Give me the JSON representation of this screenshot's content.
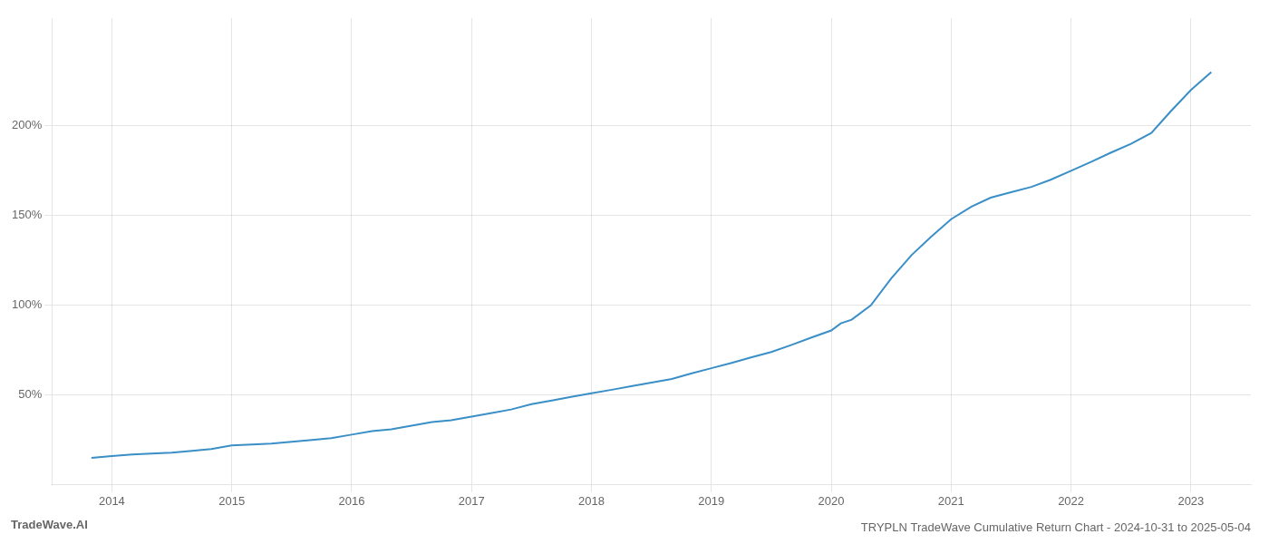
{
  "chart_data": {
    "type": "line",
    "title": "TRYPLN TradeWave Cumulative Return Chart - 2024-10-31 to 2025-05-04",
    "annotations": [
      "TradeWave.AI"
    ],
    "x": [
      2013.83,
      2014.0,
      2014.17,
      2014.33,
      2014.5,
      2014.67,
      2014.83,
      2015.0,
      2015.17,
      2015.33,
      2015.5,
      2015.67,
      2015.83,
      2016.0,
      2016.17,
      2016.33,
      2016.5,
      2016.67,
      2016.83,
      2017.0,
      2017.17,
      2017.33,
      2017.5,
      2017.67,
      2017.83,
      2018.0,
      2018.17,
      2018.33,
      2018.5,
      2018.67,
      2018.83,
      2019.0,
      2019.17,
      2019.33,
      2019.5,
      2019.67,
      2019.83,
      2020.0,
      2020.08,
      2020.17,
      2020.33,
      2020.5,
      2020.67,
      2020.83,
      2021.0,
      2021.17,
      2021.33,
      2021.5,
      2021.67,
      2021.83,
      2022.0,
      2022.17,
      2022.33,
      2022.5,
      2022.67,
      2022.83,
      2023.0,
      2023.17
    ],
    "values": [
      15,
      16,
      17,
      17.5,
      18,
      19,
      20,
      22,
      22.5,
      23,
      24,
      25,
      26,
      28,
      30,
      31,
      33,
      35,
      36,
      38,
      40,
      42,
      45,
      47,
      49,
      51,
      53,
      55,
      57,
      59,
      62,
      65,
      68,
      71,
      74,
      78,
      82,
      86,
      90,
      92,
      100,
      115,
      128,
      138,
      148,
      155,
      160,
      163,
      166,
      170,
      175,
      180,
      185,
      190,
      196,
      208,
      220,
      230
    ],
    "color": "#3a8fc7",
    "xlim": [
      2013.5,
      2023.5
    ],
    "xticks": [
      2014,
      2015,
      2016,
      2017,
      2018,
      2019,
      2020,
      2021,
      2022,
      2023
    ],
    "ylim": [
      0,
      260
    ],
    "yticks": [
      {
        "value": 50,
        "label": "50%"
      },
      {
        "value": 100,
        "label": "100%"
      },
      {
        "value": 150,
        "label": "150%"
      },
      {
        "value": 200,
        "label": "200%"
      }
    ],
    "grid": true
  }
}
